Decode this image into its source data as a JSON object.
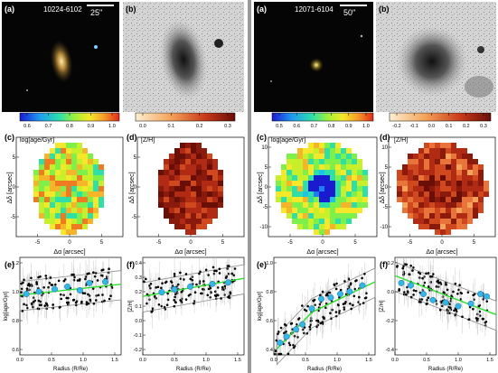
{
  "left": {
    "galaxy_id": "10224-6102",
    "scale_label": "25\"",
    "panels": {
      "a": "(a)",
      "b": "(b)",
      "c": "(c)",
      "d": "(d)",
      "e": "(e)",
      "f": "(f)"
    },
    "age_colorbar": {
      "ticks": [
        "0.6",
        "0.7",
        "0.8",
        "0.9",
        "1.0"
      ],
      "label": "log[age/Gyr]"
    },
    "zh_colorbar": {
      "ticks": [
        "0.0",
        "0.1",
        "0.2",
        "0.3"
      ],
      "label": "[Z/H]"
    },
    "map_axes": {
      "xlabel": "Δα [arcsec]",
      "ylabel": "Δδ [arcsec]",
      "xticks": [
        "-5",
        "0",
        "5"
      ],
      "yticks": [
        "5",
        "0",
        "-5"
      ]
    },
    "profile_axes": {
      "e_ylabel": "log[age/Gyr]",
      "e_yticks": [
        "1.2",
        "1.0",
        "0.8",
        "0.6"
      ],
      "f_ylabel": "[Z/H]",
      "f_yticks": [
        "0.4",
        "0.3",
        "0.2",
        "0.1",
        "0.0",
        "-0.1",
        "-0.2"
      ],
      "xticks": [
        "0.0",
        "0.5",
        "1.0",
        "1.5"
      ],
      "xlabel": "Radius (R/Re)"
    }
  },
  "right": {
    "galaxy_id": "12071-6104",
    "scale_label": "50\"",
    "panels": {
      "a": "(a)",
      "b": "(b)",
      "c": "(c)",
      "d": "(d)",
      "e": "(e)",
      "f": "(f)"
    },
    "age_colorbar": {
      "ticks": [
        "0.5",
        "0.6",
        "0.7",
        "0.8",
        "0.9",
        "1.0"
      ],
      "label": "log[age/Gyr]"
    },
    "zh_colorbar": {
      "ticks": [
        "-0.2",
        "-0.1",
        "0.0",
        "0.1",
        "0.2",
        "0.3"
      ],
      "label": "[Z/H]"
    },
    "map_axes": {
      "xlabel": "Δα [arcsec]",
      "ylabel": "Δδ [arcsec]",
      "xticks": [
        "-5",
        "0",
        "5"
      ],
      "yticks": [
        "10",
        "5",
        "0",
        "-5",
        "-10"
      ]
    },
    "profile_axes": {
      "e_ylabel": "log[age/Gyr]",
      "e_yticks": [
        "1.0",
        "0.8",
        "0.6",
        "0.4"
      ],
      "f_ylabel": "[Z/H]",
      "f_yticks": [
        "0.2",
        "0.0",
        "-0.2",
        "-0.4"
      ],
      "xticks": [
        "0.0",
        "0.5",
        "1.0",
        "1.5"
      ],
      "xlabel": "Radius (R/Re)"
    }
  },
  "chart_data": [
    {
      "type": "scatter",
      "panel": "left-e",
      "ylim": [
        0.5,
        1.3
      ],
      "xlim": [
        0,
        1.6
      ],
      "fit_line": [
        [
          0.0,
          0.99
        ],
        [
          1.6,
          1.08
        ]
      ],
      "binned_points": [
        [
          0.1,
          1.0
        ],
        [
          0.3,
          1.02
        ],
        [
          0.55,
          1.04
        ],
        [
          0.75,
          1.06
        ],
        [
          0.95,
          1.03
        ],
        [
          1.1,
          1.09
        ],
        [
          1.35,
          1.1
        ]
      ]
    },
    {
      "type": "scatter",
      "panel": "left-f",
      "ylim": [
        -0.25,
        0.45
      ],
      "xlim": [
        0,
        1.6
      ],
      "fit_line": [
        [
          0.0,
          0.17
        ],
        [
          1.6,
          0.3
        ]
      ],
      "binned_points": [
        [
          0.3,
          0.2
        ],
        [
          0.5,
          0.22
        ],
        [
          0.75,
          0.24
        ],
        [
          1.1,
          0.26
        ],
        [
          1.35,
          0.27
        ]
      ]
    },
    {
      "type": "scatter",
      "panel": "right-e",
      "ylim": [
        0.35,
        1.15
      ],
      "xlim": [
        0,
        1.6
      ],
      "fit_line": [
        [
          0.05,
          0.4
        ],
        [
          0.6,
          0.7
        ],
        [
          1.6,
          0.95
        ]
      ],
      "binned_points": [
        [
          0.1,
          0.45
        ],
        [
          0.2,
          0.5
        ],
        [
          0.35,
          0.56
        ],
        [
          0.45,
          0.6
        ],
        [
          0.6,
          0.73
        ],
        [
          0.75,
          0.81
        ],
        [
          0.9,
          0.82
        ],
        [
          1.05,
          0.85
        ],
        [
          1.2,
          0.87
        ],
        [
          1.4,
          0.92
        ]
      ]
    },
    {
      "type": "scatter",
      "panel": "right-f",
      "ylim": [
        -0.45,
        0.35
      ],
      "xlim": [
        0,
        1.6
      ],
      "fit_line": [
        [
          0.0,
          0.2
        ],
        [
          1.6,
          -0.12
        ]
      ],
      "binned_points": [
        [
          0.1,
          0.14
        ],
        [
          0.25,
          0.12
        ],
        [
          0.45,
          0.05
        ],
        [
          0.6,
          0.0
        ],
        [
          0.8,
          -0.02
        ],
        [
          1.0,
          -0.05
        ],
        [
          1.2,
          -0.03
        ],
        [
          1.35,
          0.05
        ],
        [
          1.45,
          0.03
        ]
      ]
    }
  ]
}
